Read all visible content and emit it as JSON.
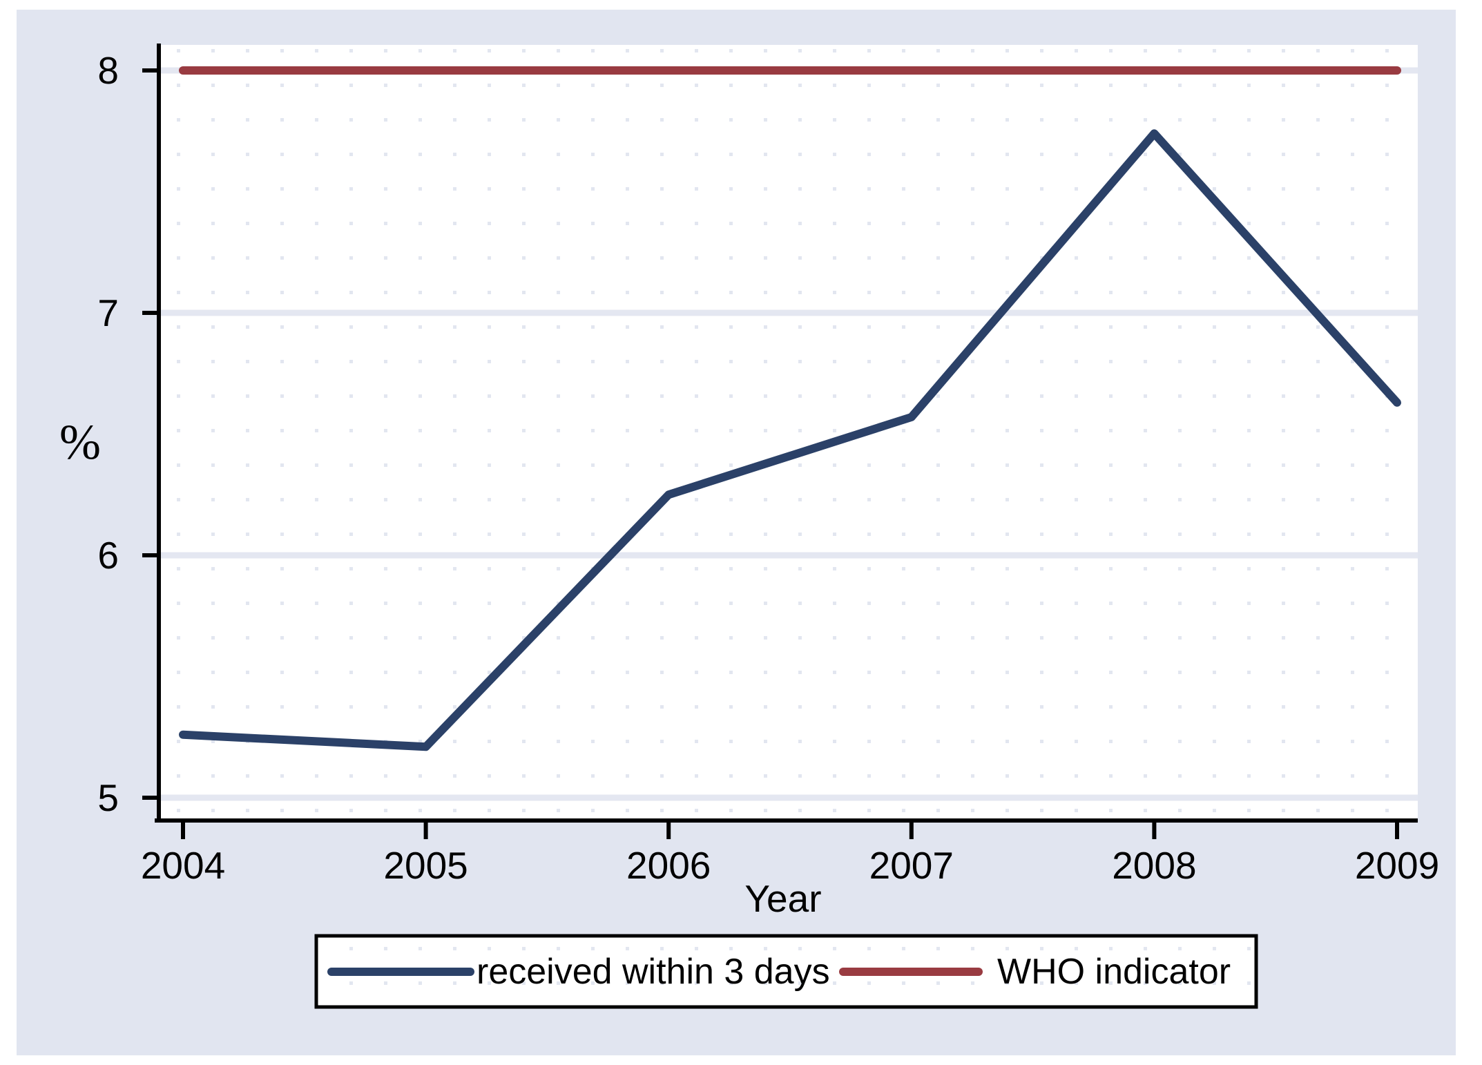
{
  "chart_data": {
    "type": "line",
    "title": "",
    "x": [
      2004,
      2005,
      2006,
      2007,
      2008,
      2009
    ],
    "x_tick_labels": [
      "2004",
      "2005",
      "2006",
      "2007",
      "2008",
      "2009"
    ],
    "y_ticks": [
      5,
      6,
      7,
      8
    ],
    "y_tick_labels": [
      "5",
      "6",
      "7",
      "8"
    ],
    "xlabel": "Year",
    "ylabel": "%",
    "ylim": [
      4.91,
      8.11
    ],
    "xlim": [
      2003.9,
      2009.1
    ],
    "grid": "solid horizontal gridlines at y ticks plus faint dotted square mesh",
    "legend_position": "bottom-center",
    "series": [
      {
        "name": "received within 3 days",
        "color": "#2b4168",
        "values": [
          5.26,
          5.21,
          6.25,
          6.57,
          7.74,
          6.63
        ]
      },
      {
        "name": "WHO indicator",
        "color": "#993b41",
        "values": [
          8,
          8,
          8,
          8,
          8,
          8
        ]
      }
    ]
  },
  "legend": {
    "items": [
      {
        "label": "received within 3 days",
        "swatch": "navy-line"
      },
      {
        "label": "WHO indicator",
        "swatch": "dark-red-line"
      }
    ]
  },
  "colors": {
    "canvas": "#ffffff",
    "chart_background": "#e1e5f0",
    "plot_background": "#ffffff",
    "gridline": "#e4e7f1",
    "dot_grid": "#e2e6f0",
    "axis": "#000000",
    "text": "#000000",
    "series_received": "#2b4168",
    "series_who": "#993b41",
    "legend_background": "#ffffff",
    "legend_border": "#000000"
  }
}
